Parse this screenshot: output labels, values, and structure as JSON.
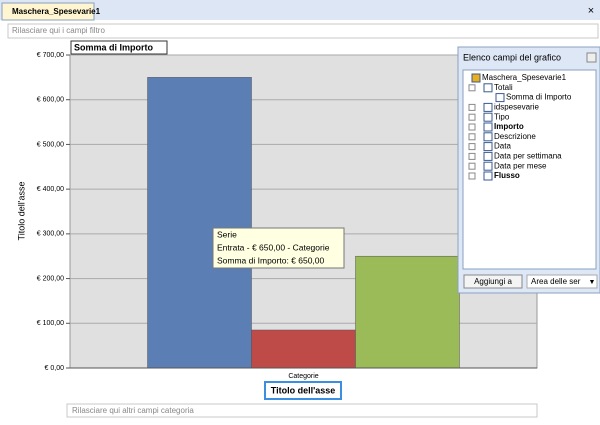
{
  "tab": {
    "title": "Maschera_Spesevarie1"
  },
  "filter_zone": "Rilasciare qui i campi filtro",
  "category_zone": "Rilasciare qui altri campi categoria",
  "chart_data": {
    "type": "bar",
    "title": "Somma di Importo",
    "categories": [
      "Categorie"
    ],
    "series": [
      {
        "name": "Entrata",
        "color": "#5b7fb5",
        "values": [
          650
        ]
      },
      {
        "color": "#bf4b48",
        "values": [
          85
        ]
      },
      {
        "color": "#9bbb59",
        "values": [
          250
        ]
      }
    ],
    "ylim": [
      0,
      700
    ],
    "yticks": [
      {
        "value": 0,
        "label": "€ 0,00"
      },
      {
        "value": 100,
        "label": "€ 100,00"
      },
      {
        "value": 200,
        "label": "€ 200,00"
      },
      {
        "value": 300,
        "label": "€ 300,00"
      },
      {
        "value": 400,
        "label": "€ 400,00"
      },
      {
        "value": 500,
        "label": "€ 500,00"
      },
      {
        "value": 600,
        "label": "€ 600,00"
      },
      {
        "value": 700,
        "label": "€ 700,00"
      }
    ],
    "grid": true,
    "ylabel": "Titolo dell'asse",
    "xlabel": "Titolo dell'asse",
    "tooltip": [
      "Serie",
      "Entrata - € 650,00 - Categorie",
      "Somma di Importo: € 650,00"
    ]
  },
  "field_list": {
    "title": "Elenco campi del grafico",
    "items": [
      {
        "label": "Maschera_Spesevarie1",
        "level": 0,
        "bold": false
      },
      {
        "label": "Totali",
        "level": 1,
        "bold": false
      },
      {
        "label": "Somma di Importo",
        "level": 2,
        "bold": false
      },
      {
        "label": "idspesevarie",
        "level": 1,
        "bold": false
      },
      {
        "label": "Tipo",
        "level": 1,
        "bold": false
      },
      {
        "label": "Importo",
        "level": 1,
        "bold": true
      },
      {
        "label": "Descrizione",
        "level": 1,
        "bold": false
      },
      {
        "label": "Data",
        "level": 1,
        "bold": false
      },
      {
        "label": "Data per settimana",
        "level": 1,
        "bold": false
      },
      {
        "label": "Data per mese",
        "level": 1,
        "bold": false
      },
      {
        "label": "Flusso",
        "level": 1,
        "bold": true
      }
    ],
    "button": "Aggiungi a",
    "dropdown": "Area delle ser"
  }
}
